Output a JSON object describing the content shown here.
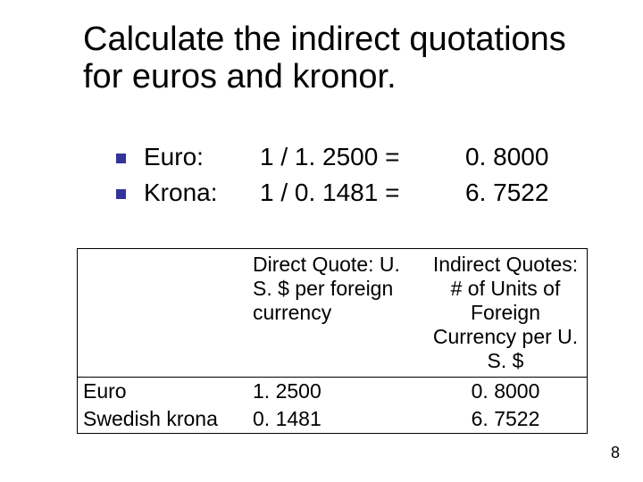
{
  "slide": {
    "title": "Calculate the indirect quotations for euros and kronor.",
    "page_number": "8",
    "bullets": [
      {
        "label": "Euro:",
        "calc": "1 / 1. 2500 =",
        "result": "0. 8000"
      },
      {
        "label": "Krona:",
        "calc": "1 / 0. 1481 =",
        "result": "6. 7522"
      }
    ],
    "table": {
      "header": {
        "currency": "",
        "direct": "Direct Quote: U. S. $ per foreign currency",
        "indirect": "Indirect Quotes: # of Units of Foreign Currency per U. S. $"
      },
      "rows": [
        {
          "currency": "Euro",
          "direct": "1. 2500",
          "indirect": "0. 8000"
        },
        {
          "currency": "Swedish krona",
          "direct": "0. 1481",
          "indirect": "6. 7522"
        }
      ]
    },
    "colors": {
      "bullet": "#333399",
      "text": "#000000",
      "background": "#ffffff",
      "border": "#000000"
    },
    "fonts": {
      "title_size_pt": 38,
      "body_size_pt": 28,
      "table_size_pt": 23,
      "pageno_size_pt": 18
    }
  }
}
